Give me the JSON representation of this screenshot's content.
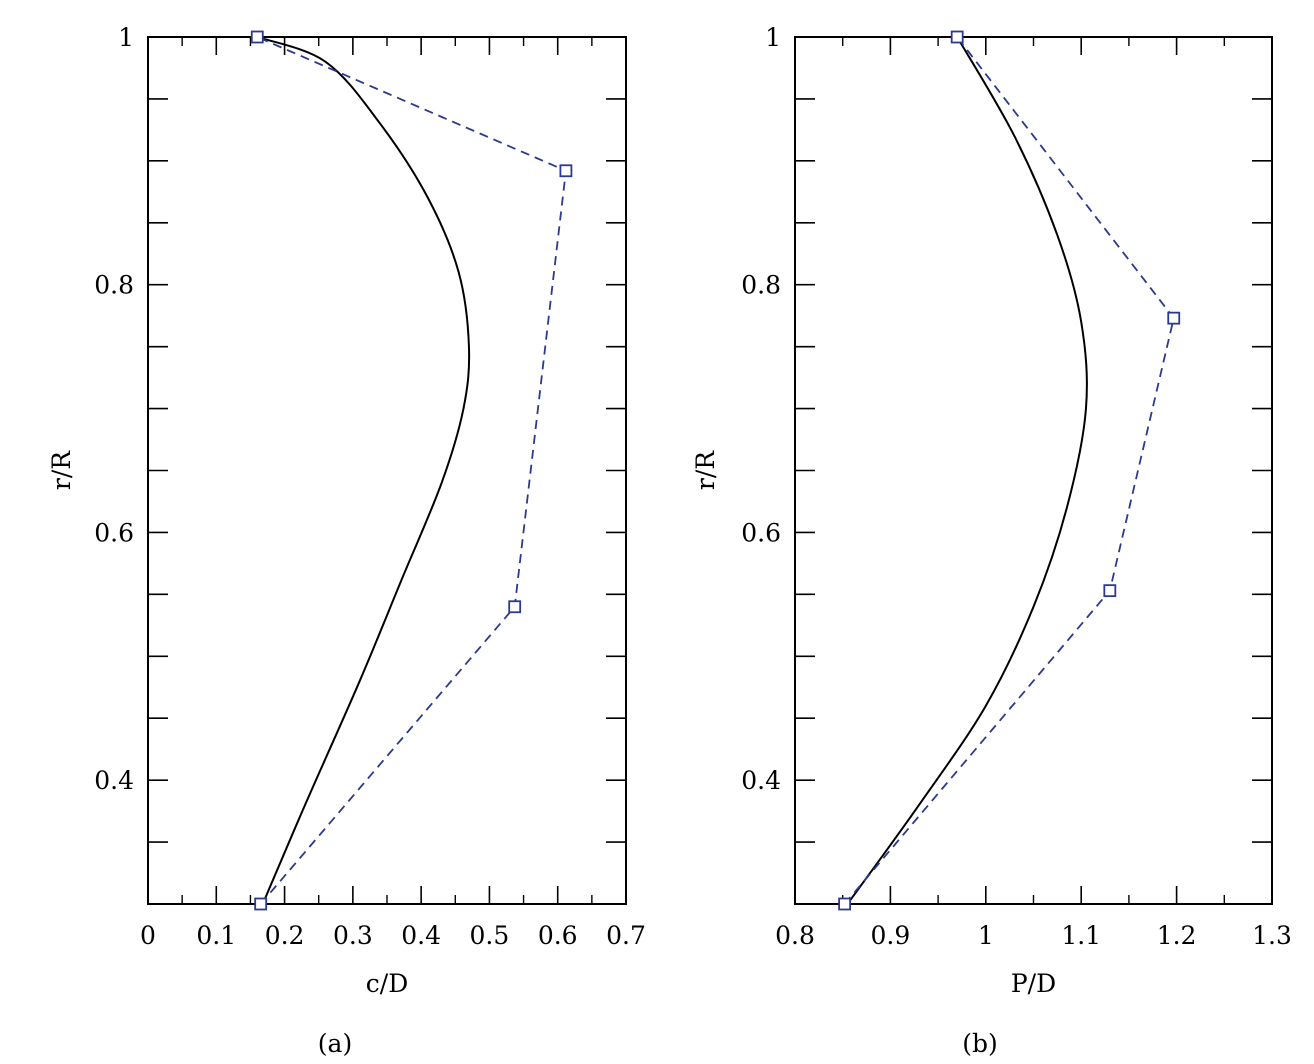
{
  "chart_data": [
    {
      "type": "line",
      "panel_label": "(a)",
      "xlabel": "c/D",
      "ylabel": "r/R",
      "xlim": [
        0,
        0.7
      ],
      "ylim": [
        0.3,
        1.0
      ],
      "x_ticks": [
        "0",
        "0.1",
        "0.2",
        "0.3",
        "0.4",
        "0.5",
        "0.6",
        "0.7"
      ],
      "y_ticks": [
        "0.4",
        "0.6",
        "0.8",
        "1"
      ],
      "grid": false,
      "series": [
        {
          "style": "solid",
          "color": "#000000",
          "points": [
            [
              0.168,
              0.3
            ],
            [
              0.23,
              0.38
            ],
            [
              0.31,
              0.48
            ],
            [
              0.37,
              0.56
            ],
            [
              0.43,
              0.64
            ],
            [
              0.462,
              0.7
            ],
            [
              0.47,
              0.75
            ],
            [
              0.455,
              0.81
            ],
            [
              0.41,
              0.87
            ],
            [
              0.34,
              0.93
            ],
            [
              0.26,
              0.98
            ],
            [
              0.16,
              1.0
            ]
          ]
        },
        {
          "style": "dashed",
          "marker": "square",
          "color": "#2b3a8f",
          "points": [
            [
              0.165,
              0.3
            ],
            [
              0.537,
              0.54
            ],
            [
              0.612,
              0.892
            ],
            [
              0.16,
              1.0
            ]
          ]
        }
      ]
    },
    {
      "type": "line",
      "panel_label": "(b)",
      "xlabel": "P/D",
      "ylabel": "r/R",
      "xlim": [
        0.8,
        1.3
      ],
      "ylim": [
        0.3,
        1.0
      ],
      "x_ticks": [
        "0.8",
        "0.9",
        "1",
        "1.1",
        "1.2",
        "1.3"
      ],
      "y_ticks": [
        "0.4",
        "0.6",
        "0.8",
        "1"
      ],
      "grid": false,
      "series": [
        {
          "style": "solid",
          "color": "#000000",
          "points": [
            [
              0.855,
              0.3
            ],
            [
              0.93,
              0.38
            ],
            [
              1.0,
              0.46
            ],
            [
              1.05,
              0.54
            ],
            [
              1.085,
              0.62
            ],
            [
              1.105,
              0.7
            ],
            [
              1.1,
              0.77
            ],
            [
              1.075,
              0.84
            ],
            [
              1.03,
              0.92
            ],
            [
              0.97,
              1.0
            ]
          ]
        },
        {
          "style": "dashed",
          "marker": "square",
          "color": "#2b3a8f",
          "points": [
            [
              0.852,
              0.3
            ],
            [
              1.13,
              0.553
            ],
            [
              1.197,
              0.773
            ],
            [
              0.97,
              1.0
            ]
          ]
        }
      ]
    }
  ]
}
